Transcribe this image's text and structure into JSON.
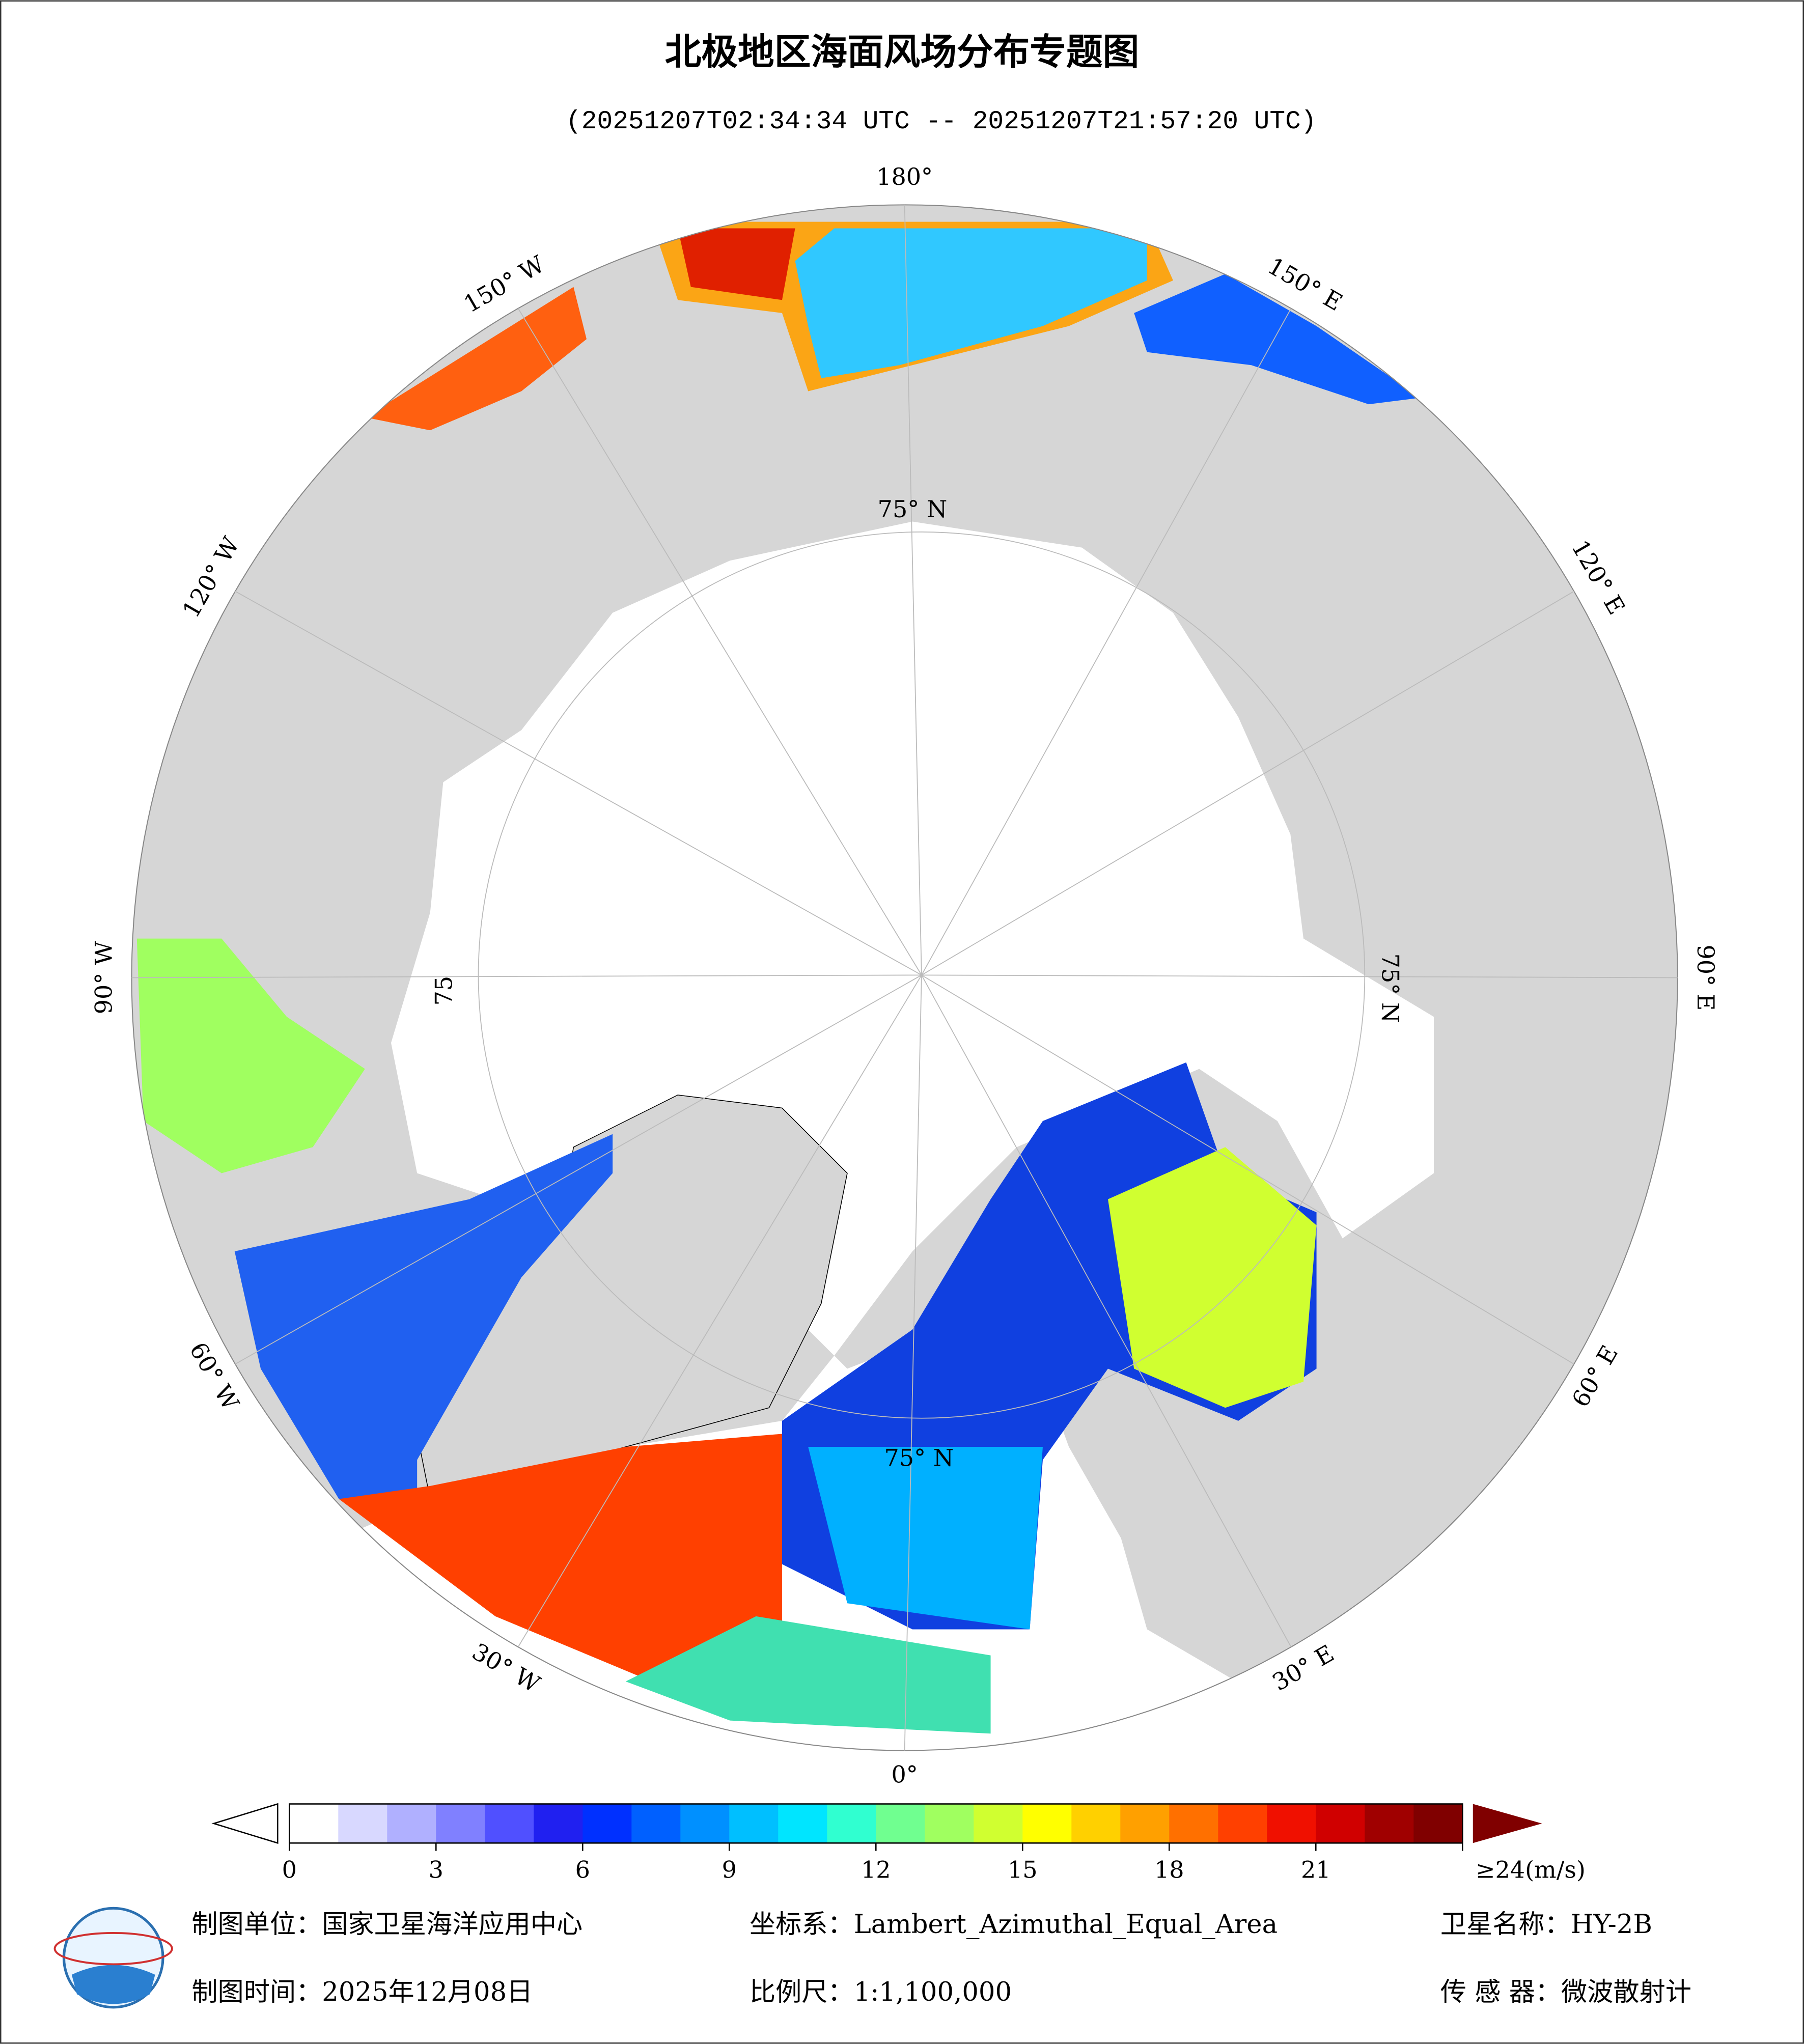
{
  "header": {
    "title": "北极地区海面风场分布专题图",
    "subtitle": "(20251207T02:34:34 UTC -- 20251207T21:57:20 UTC)"
  },
  "map": {
    "lon_labels": [
      "180°",
      "150° E",
      "120° E",
      "90° E",
      "60° E",
      "30° E",
      "0°",
      "30° W",
      "60° W",
      "90° W",
      "120° W",
      "150° W"
    ],
    "lat_labels": [
      "75° N",
      "75° N",
      "75° N",
      "75"
    ]
  },
  "colorbar": {
    "ticks": [
      0,
      3,
      6,
      9,
      12,
      15,
      18,
      21,
      {
        "value": 24,
        "label": "≥24(m/s)"
      }
    ],
    "lim": [
      0,
      24
    ],
    "colors": [
      "#ffffff",
      "#d8d8ff",
      "#b0b0ff",
      "#8080ff",
      "#5050ff",
      "#2020f0",
      "#0030ff",
      "#0060ff",
      "#0090ff",
      "#00bfff",
      "#00e5ff",
      "#30ffd0",
      "#70ff90",
      "#a0ff60",
      "#d0ff30",
      "#ffff00",
      "#ffd000",
      "#ffa000",
      "#ff7000",
      "#ff4000",
      "#f01000",
      "#d00000",
      "#a00000",
      "#800000"
    ]
  },
  "footer": {
    "unit": "制图单位：国家卫星海洋应用中心",
    "crs": "坐标系：Lambert_Azimuthal_Equal_Area",
    "satellite": "卫星名称：HY-2B",
    "date": "制图时间：2025年12月08日",
    "scale": "比例尺：1:1,100,000",
    "sensor": "传 感 器：微波散射计"
  }
}
